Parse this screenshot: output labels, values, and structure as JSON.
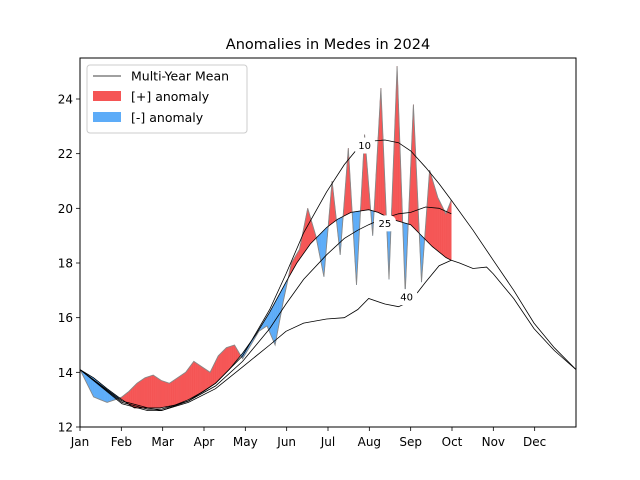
{
  "chart_data": {
    "type": "area",
    "title": "Anomalies in Medes in 2024",
    "xlabel": "",
    "ylabel": "",
    "x_ticks": [
      "Jan",
      "Feb",
      "Mar",
      "Apr",
      "May",
      "Jun",
      "Jul",
      "Aug",
      "Sep",
      "Oct",
      "Nov",
      "Dec"
    ],
    "xlim_days": [
      0,
      366
    ],
    "y_ticks": [
      12,
      14,
      16,
      18,
      20,
      22,
      24
    ],
    "ylim": [
      12.0,
      25.5
    ],
    "grid": false,
    "legend": {
      "placement": "top-left",
      "entries": [
        {
          "label": "Multi-Year Mean",
          "kind": "line",
          "color": "#000000"
        },
        {
          "label": "[+] anomaly",
          "kind": "patch",
          "color": "#f55555"
        },
        {
          "label": "[-] anomaly",
          "kind": "patch",
          "color": "#5dacf8"
        }
      ]
    },
    "colors": {
      "positive": "#f55555",
      "negative": "#5dacf8",
      "mean": "#000000",
      "observed_edge": "#888888"
    },
    "series": [
      {
        "role": "multi-year-mean",
        "x": [
          0,
          10,
          20,
          31,
          40,
          50,
          59,
          70,
          80,
          91,
          100,
          110,
          120,
          130,
          140,
          152,
          160,
          170,
          182,
          190,
          200,
          213,
          220,
          230,
          244,
          250,
          260,
          270,
          274,
          280,
          290,
          300,
          305,
          320,
          335,
          350,
          366
        ],
        "y": [
          14.1,
          13.8,
          13.4,
          13.0,
          12.7,
          12.7,
          12.7,
          12.8,
          13.0,
          13.3,
          13.6,
          14.1,
          14.7,
          15.4,
          16.2,
          17.3,
          18.0,
          18.7,
          19.3,
          19.6,
          19.85,
          19.95,
          19.85,
          19.6,
          19.4,
          19.1,
          18.6,
          18.2,
          18.1,
          18.0,
          17.8,
          17.85,
          17.6,
          16.7,
          15.6,
          14.8,
          14.1
        ]
      },
      {
        "role": "percentile-10",
        "x": [
          0,
          31,
          50,
          60,
          80,
          100,
          120,
          140,
          152,
          165,
          182,
          195,
          205,
          213,
          225,
          235,
          244,
          255,
          265,
          274,
          290,
          305,
          320,
          335,
          350,
          366
        ],
        "y": [
          14.1,
          12.95,
          12.7,
          12.6,
          12.95,
          13.6,
          14.6,
          16.3,
          17.6,
          19.1,
          20.6,
          21.6,
          22.2,
          22.45,
          22.5,
          22.4,
          22.1,
          21.5,
          20.9,
          20.3,
          19.2,
          18.1,
          17.0,
          15.8,
          14.9,
          14.1
        ]
      },
      {
        "role": "percentile-25",
        "x": [
          0,
          31,
          50,
          60,
          80,
          100,
          120,
          140,
          152,
          165,
          182,
          195,
          205,
          213,
          222,
          235,
          244,
          255,
          265,
          274
        ],
        "y": [
          14.1,
          12.9,
          12.65,
          12.65,
          12.95,
          13.5,
          14.4,
          15.6,
          16.5,
          17.4,
          18.3,
          18.9,
          19.2,
          19.4,
          19.6,
          19.8,
          19.85,
          20.05,
          20.0,
          19.8
        ]
      },
      {
        "role": "percentile-40",
        "x": [
          0,
          31,
          50,
          60,
          80,
          100,
          120,
          140,
          152,
          165,
          182,
          195,
          205,
          213,
          225,
          235,
          244,
          255,
          265,
          274
        ],
        "y": [
          14.1,
          12.85,
          12.6,
          12.6,
          12.9,
          13.4,
          14.2,
          15.0,
          15.5,
          15.8,
          15.95,
          16.0,
          16.3,
          16.7,
          16.5,
          16.4,
          16.6,
          17.3,
          17.9,
          18.1
        ]
      },
      {
        "role": "observed",
        "x": [
          0,
          5,
          10,
          15,
          20,
          26,
          31,
          36,
          42,
          48,
          54,
          60,
          66,
          72,
          78,
          84,
          90,
          96,
          102,
          108,
          114,
          120,
          126,
          132,
          138,
          144,
          150,
          156,
          162,
          168,
          174,
          180,
          186,
          192,
          198,
          204,
          210,
          216,
          222,
          228,
          234,
          240,
          246,
          252,
          258,
          264,
          270,
          274
        ],
        "y": [
          14.1,
          13.6,
          13.1,
          13.0,
          12.9,
          13.0,
          13.1,
          13.3,
          13.6,
          13.8,
          13.9,
          13.7,
          13.6,
          13.8,
          14.0,
          14.4,
          14.2,
          14.0,
          14.6,
          14.9,
          15.0,
          14.5,
          15.0,
          15.5,
          15.7,
          15.0,
          16.6,
          18.0,
          18.5,
          20.0,
          19.0,
          17.5,
          21.0,
          18.3,
          22.2,
          17.2,
          22.7,
          19.0,
          24.4,
          17.4,
          25.2,
          16.9,
          23.8,
          17.3,
          21.4,
          20.4,
          19.8,
          20.3
        ]
      }
    ],
    "contour_labels": [
      {
        "text": "10",
        "x": 210,
        "y": 22.3
      },
      {
        "text": "25",
        "x": 225,
        "y": 19.45
      },
      {
        "text": "40",
        "x": 241,
        "y": 16.75
      }
    ]
  }
}
